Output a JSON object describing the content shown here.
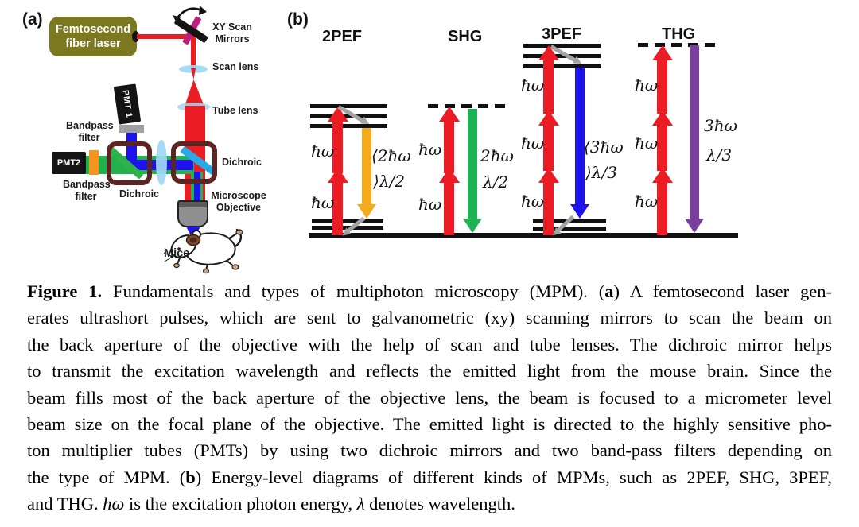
{
  "panel_a": {
    "label": "(a)",
    "laser_line1": "Femtosecond",
    "laser_line2": "fiber laser",
    "xy_mirrors_line1": "XY Scan",
    "xy_mirrors_line2": "Mirrors",
    "scan_lens": "Scan lens",
    "tube_lens": "Tube lens",
    "pmt1": "PMT 1",
    "pmt2": "PMT2",
    "bandpass1_line1": "Bandpass",
    "bandpass1_line2": "filter",
    "bandpass2_line1": "Bandpass",
    "bandpass2_line2": "filter",
    "dichroic1": "Dichroic",
    "dichroic2": "Dichroic",
    "objective_line1": "Microscope",
    "objective_line2": "Objective",
    "mice": "Mice"
  },
  "panel_b": {
    "label": "(b)",
    "photon": "ħω",
    "diagrams": {
      "twopef": {
        "title": "2PEF",
        "em1": "⟨2ħω",
        "em2": "⟩λ/2"
      },
      "shg": {
        "title": "SHG",
        "em1": "2ħω",
        "em2": "λ/2"
      },
      "threepef": {
        "title": "3PEF",
        "em1": "⟨3ħω",
        "em2": "⟩λ/3"
      },
      "thg": {
        "title": "THG",
        "em1": "3ħω",
        "em2": "λ/3"
      }
    }
  },
  "colors": {
    "excitation_red": "#ec1c24",
    "fluorescence_2pef_yellow": "#f3ab1c",
    "shg_green": "#1db254",
    "fluorescence_3pef_blue": "#1d13ec",
    "thg_purple": "#7a3f9d",
    "relaxation_gray": "#a3a3a3",
    "laser_box_olive": "#7c7820",
    "dichroic_frame_maroon": "#5d2422",
    "lens_light_blue": "#9fd8f2",
    "dichroic_mirror_blue": "#29abe2",
    "dichroic_mirror_green": "#2db34a",
    "bandpass_orange": "#f7941d",
    "bandpass_gray": "#a0a0a0",
    "emission_green_beam": "#22b14c",
    "scan_mirror_magenta": "#c21b7e"
  },
  "caption": {
    "lines": [
      [
        {
          "t": "Figure 1.",
          "b": true
        },
        {
          "t": " Fundamentals and types of multiphoton microscopy (MPM). ("
        },
        {
          "t": "a",
          "b": true
        },
        {
          "t": ") A femtosecond laser gen-"
        }
      ],
      [
        {
          "t": "erates ultrashort pulses, which are sent to galvanometric (xy) scanning mirrors to scan the beam on"
        }
      ],
      [
        {
          "t": "the back aperture of the objective with the help of scan and tube lenses.  The dichroic mirror helps"
        }
      ],
      [
        {
          "t": "to transmit the excitation wavelength and reflects the emitted light from the mouse brain.  Since the"
        }
      ],
      [
        {
          "t": "beam fills most of the back aperture of the objective lens, the beam is focused to a micrometer level"
        }
      ],
      [
        {
          "t": "beam size on the focal plane of the objective.  The emitted light is directed to the highly sensitive pho-"
        }
      ],
      [
        {
          "t": "ton multiplier tubes (PMTs) by using two dichroic mirrors and two band-pass filters depending on"
        }
      ],
      [
        {
          "t": "the type of MPM. ("
        },
        {
          "t": "b",
          "b": true
        },
        {
          "t": ") Energy-level diagrams of different kinds of MPMs, such as 2PEF, SHG, 3PEF,"
        }
      ],
      [
        {
          "t": "and THG. "
        },
        {
          "t": "hω",
          "i": true
        },
        {
          "t": " is the excitation photon energy, "
        },
        {
          "t": "λ",
          "i": true
        },
        {
          "t": " denotes wavelength."
        }
      ]
    ]
  }
}
